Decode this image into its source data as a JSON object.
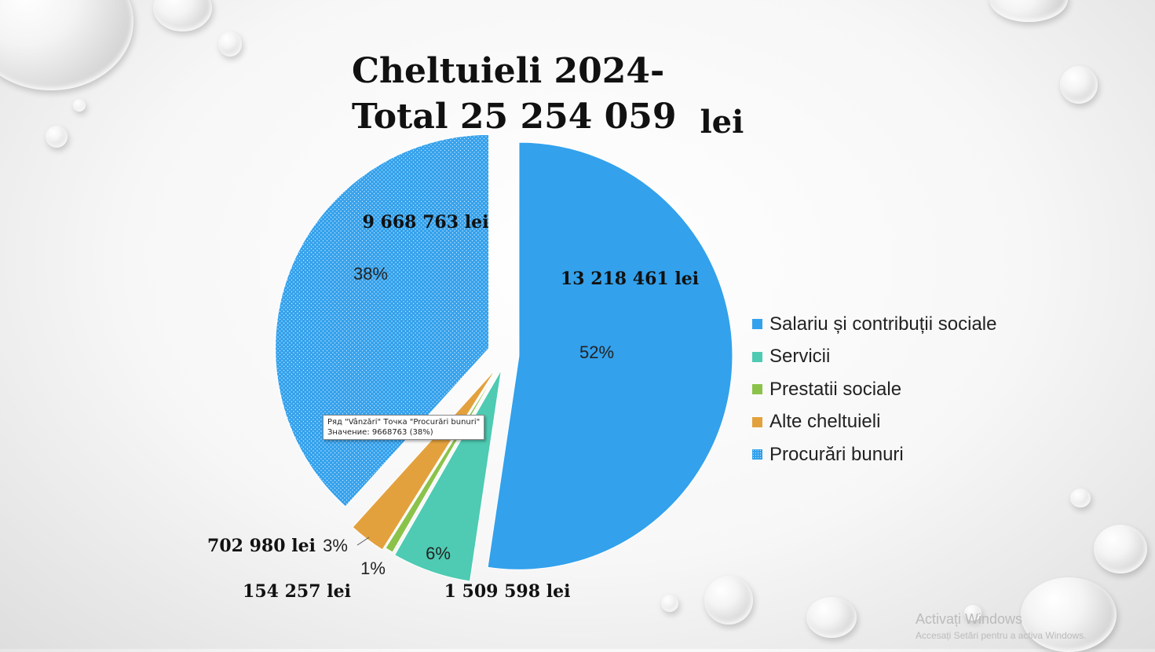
{
  "chart_data": {
    "type": "pie",
    "title_line1": "Cheltuieli 2024-",
    "title_line2": "Total 25 254 059",
    "title_unit": "lei",
    "slices": [
      {
        "name": "Salariu și contribuții sociale",
        "value": 13218461,
        "value_label": "13 218 461 lei",
        "percent_label": "52%",
        "color": "#33a1ec",
        "pattern": "solid"
      },
      {
        "name": "Servicii",
        "value": 1509598,
        "value_label": "1 509 598 lei",
        "percent_label": "6%",
        "color": "#4ecbb2",
        "pattern": "solid"
      },
      {
        "name": "Prestatii sociale",
        "value": 154257,
        "value_label": "154 257 lei",
        "percent_label": "1%",
        "color": "#8bc34a",
        "pattern": "solid"
      },
      {
        "name": "Alte cheltuieli",
        "value": 702980,
        "value_label": "702 980 lei",
        "percent_label": "3%",
        "color": "#e3a13d",
        "pattern": "solid"
      },
      {
        "name": "Procurări bunuri",
        "value": 9668763,
        "value_label": "9 668 763 lei",
        "percent_label": "38%",
        "color": "#33a1ec",
        "pattern": "dotted"
      }
    ],
    "legend_placement": "right"
  },
  "tooltip": {
    "line1": "Ряд \"Vânzări\" Точка \"Procurări bunuri\"",
    "line2": "Значение: 9668763 (38%)"
  },
  "watermark": {
    "line1": "Activați Windows",
    "line2": "Accesați Setări pentru a activa Windows."
  }
}
